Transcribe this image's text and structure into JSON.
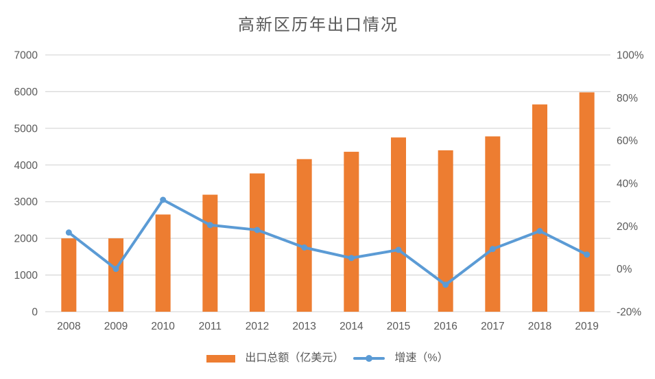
{
  "chart_data": {
    "type": "combo-bar-line",
    "title": "高新区历年出口情况",
    "categories": [
      "2008",
      "2009",
      "2010",
      "2011",
      "2012",
      "2013",
      "2014",
      "2015",
      "2016",
      "2017",
      "2018",
      "2019"
    ],
    "series": [
      {
        "name": "出口总额（亿美元）",
        "type": "bar",
        "axis": "left",
        "color": "#ED7D31",
        "values": [
          2000,
          2000,
          2650,
          3190,
          3770,
          4160,
          4360,
          4750,
          4400,
          4780,
          5650,
          5980
        ]
      },
      {
        "name": "增速（%）",
        "type": "line",
        "axis": "right",
        "color": "#5B9BD5",
        "values": [
          17.0,
          0.0,
          32.3,
          20.5,
          18.2,
          10.0,
          5.1,
          8.9,
          -7.4,
          9.3,
          17.7,
          6.7
        ]
      }
    ],
    "left_axis": {
      "min": 0,
      "max": 7000,
      "step": 1000,
      "tick_values": [
        0,
        1000,
        2000,
        3000,
        4000,
        5000,
        6000,
        7000
      ],
      "tick_labels": [
        "0",
        "1000",
        "2000",
        "3000",
        "4000",
        "5000",
        "6000",
        "7000"
      ]
    },
    "right_axis": {
      "min": -20,
      "max": 100,
      "step": 20,
      "tick_values": [
        -20,
        0,
        20,
        40,
        60,
        80,
        100
      ],
      "tick_labels": [
        "-20%",
        "0%",
        "20%",
        "40%",
        "60%",
        "80%",
        "100%"
      ]
    },
    "grid": true,
    "gridline_color": "#D9D9D9",
    "text_color": "#595959",
    "legend_position": "bottom"
  }
}
